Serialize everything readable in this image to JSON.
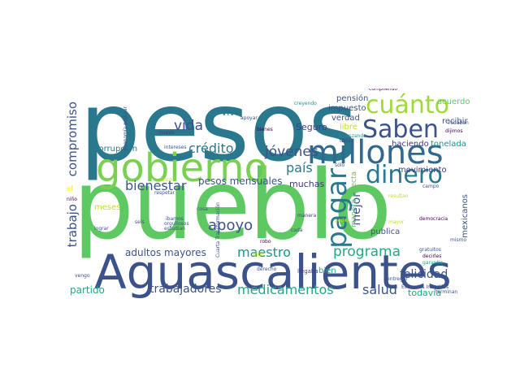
{
  "palette": {
    "teal": "#2a788e",
    "green": "#5ec962",
    "purple": "#3b528b",
    "indigo": "#443983",
    "dark": "#440154",
    "lime": "#bddf26",
    "sea": "#22a884",
    "cyan": "#21918c",
    "light": "#7ad151"
  },
  "words": [
    {
      "text": "pesos",
      "color": "#2a788e"
    },
    {
      "text": "pueblo",
      "color": "#5ec962"
    },
    {
      "text": "Aguascalientes",
      "color": "#3b528b"
    },
    {
      "text": "gobierno",
      "color": "#7ad151"
    },
    {
      "text": "millones",
      "color": "#31688e"
    },
    {
      "text": "Saben",
      "color": "#3b528b"
    },
    {
      "text": "cuánto",
      "color": "#a0da39"
    },
    {
      "text": "dinero",
      "color": "#2a788e"
    },
    {
      "text": "pagar",
      "color": "#2a788e"
    },
    {
      "text": "apoyo",
      "color": "#3b528b"
    },
    {
      "text": "medicamentos",
      "color": "#22a884"
    },
    {
      "text": "trabajadores",
      "color": "#3b528b"
    },
    {
      "text": "salud",
      "color": "#3b528b"
    },
    {
      "text": "programa",
      "color": "#22a884"
    },
    {
      "text": "felicidad",
      "color": "#3b528b"
    },
    {
      "text": "bienestar",
      "color": "#3b528b"
    },
    {
      "text": "crédito",
      "color": "#2a788e"
    },
    {
      "text": "jóvenes",
      "color": "#3b528b"
    },
    {
      "text": "vida",
      "color": "#3b528b"
    },
    {
      "text": "país",
      "color": "#2a788e"
    },
    {
      "text": "maestro",
      "color": "#21918c"
    },
    {
      "text": "compromiso",
      "color": "#3b528b"
    },
    {
      "text": "trabajo",
      "color": "#3b528b"
    },
    {
      "text": "adultos mayores",
      "color": "#3b528b"
    },
    {
      "text": "pesos mensuales",
      "color": "#3b528b"
    },
    {
      "text": "partido",
      "color": "#22a884"
    },
    {
      "text": "todavía",
      "color": "#22a884"
    },
    {
      "text": "corrupción",
      "color": "#2a788e"
    },
    {
      "text": "mejor",
      "color": "#3b528b"
    },
    {
      "text": "muchas",
      "color": "#443983"
    },
    {
      "text": "Seguro",
      "color": "#443983"
    },
    {
      "text": "Viva",
      "color": "#2a788e"
    },
    {
      "text": "impuesto",
      "color": "#3b528b"
    },
    {
      "text": "verdad",
      "color": "#3b528b"
    },
    {
      "text": "libre",
      "color": "#bddf26"
    },
    {
      "text": "pensión",
      "color": "#3b528b"
    },
    {
      "text": "acuerdo",
      "color": "#5ec962"
    },
    {
      "text": "recibir",
      "color": "#3b528b"
    },
    {
      "text": "haciendo",
      "color": "#443983"
    },
    {
      "text": "tonelada",
      "color": "#21918c"
    },
    {
      "text": "movimiento",
      "color": "#443983"
    },
    {
      "text": "mexicanos",
      "color": "#3b528b"
    },
    {
      "text": "publica",
      "color": "#3b528b"
    },
    {
      "text": "bien",
      "color": "#22a884"
    },
    {
      "text": "manera directa",
      "color": "#5ec962"
    },
    {
      "text": "meses",
      "color": "#bddf26"
    },
    {
      "text": "cumpliendo",
      "color": "#440154"
    },
    {
      "text": "nuevo",
      "color": "#443983"
    },
    {
      "text": "bienes",
      "color": "#440154"
    },
    {
      "text": "intereses",
      "color": "#3b528b"
    },
    {
      "text": "apoyar",
      "color": "#3b528b"
    },
    {
      "text": "sólo",
      "color": "#3b528b"
    },
    {
      "text": "avanzando",
      "color": "#21918c"
    },
    {
      "text": "todas",
      "color": "#3b528b"
    },
    {
      "text": "dijimos",
      "color": "#440154"
    },
    {
      "text": "robaban",
      "color": "#3b528b"
    },
    {
      "text": "Estancias Infantiles",
      "color": "#3b528b"
    },
    {
      "text": "terminan",
      "color": "#3b528b"
    },
    {
      "text": "llegaba",
      "color": "#443983"
    },
    {
      "text": "lograr",
      "color": "#3b528b"
    },
    {
      "text": "vengo",
      "color": "#3b528b"
    },
    {
      "text": "gratuitos",
      "color": "#3b528b"
    },
    {
      "text": "decirles",
      "color": "#440154"
    },
    {
      "text": "garantía",
      "color": "#22a884"
    },
    {
      "text": "democracia",
      "color": "#440154"
    },
    {
      "text": "mismo",
      "color": "#3b528b"
    },
    {
      "text": "campo",
      "color": "#3b528b"
    },
    {
      "text": "resultan",
      "color": "#bddf26"
    },
    {
      "text": "entregar",
      "color": "#3b528b"
    },
    {
      "text": "manera",
      "color": "#443983"
    },
    {
      "text": "cada",
      "color": "#3b528b"
    },
    {
      "text": "robo",
      "color": "#440154"
    },
    {
      "text": "derecho",
      "color": "#3b528b"
    },
    {
      "text": "digo",
      "color": "#bddf26"
    },
    {
      "text": "seis",
      "color": "#3b528b"
    },
    {
      "text": "cosa",
      "color": "#3b528b"
    },
    {
      "text": "ibamos",
      "color": "#3b528b"
    },
    {
      "text": "orgullosos",
      "color": "#3b528b"
    },
    {
      "text": "estudian",
      "color": "#3b528b"
    },
    {
      "text": "respetar",
      "color": "#3b528b"
    },
    {
      "text": "niño",
      "color": "#440154"
    },
    {
      "text": "Cuarta Transformación",
      "color": "#3b528b"
    },
    {
      "text": "economía popular",
      "color": "#3b528b"
    },
    {
      "text": "creyendo",
      "color": "#21918c"
    },
    {
      "text": "poder",
      "color": "#bddf26"
    },
    {
      "text": "mayor",
      "color": "#bddf26"
    },
    {
      "text": "cinco",
      "color": "#bddf26"
    },
    {
      "text": "el",
      "color": "#fde725"
    }
  ]
}
